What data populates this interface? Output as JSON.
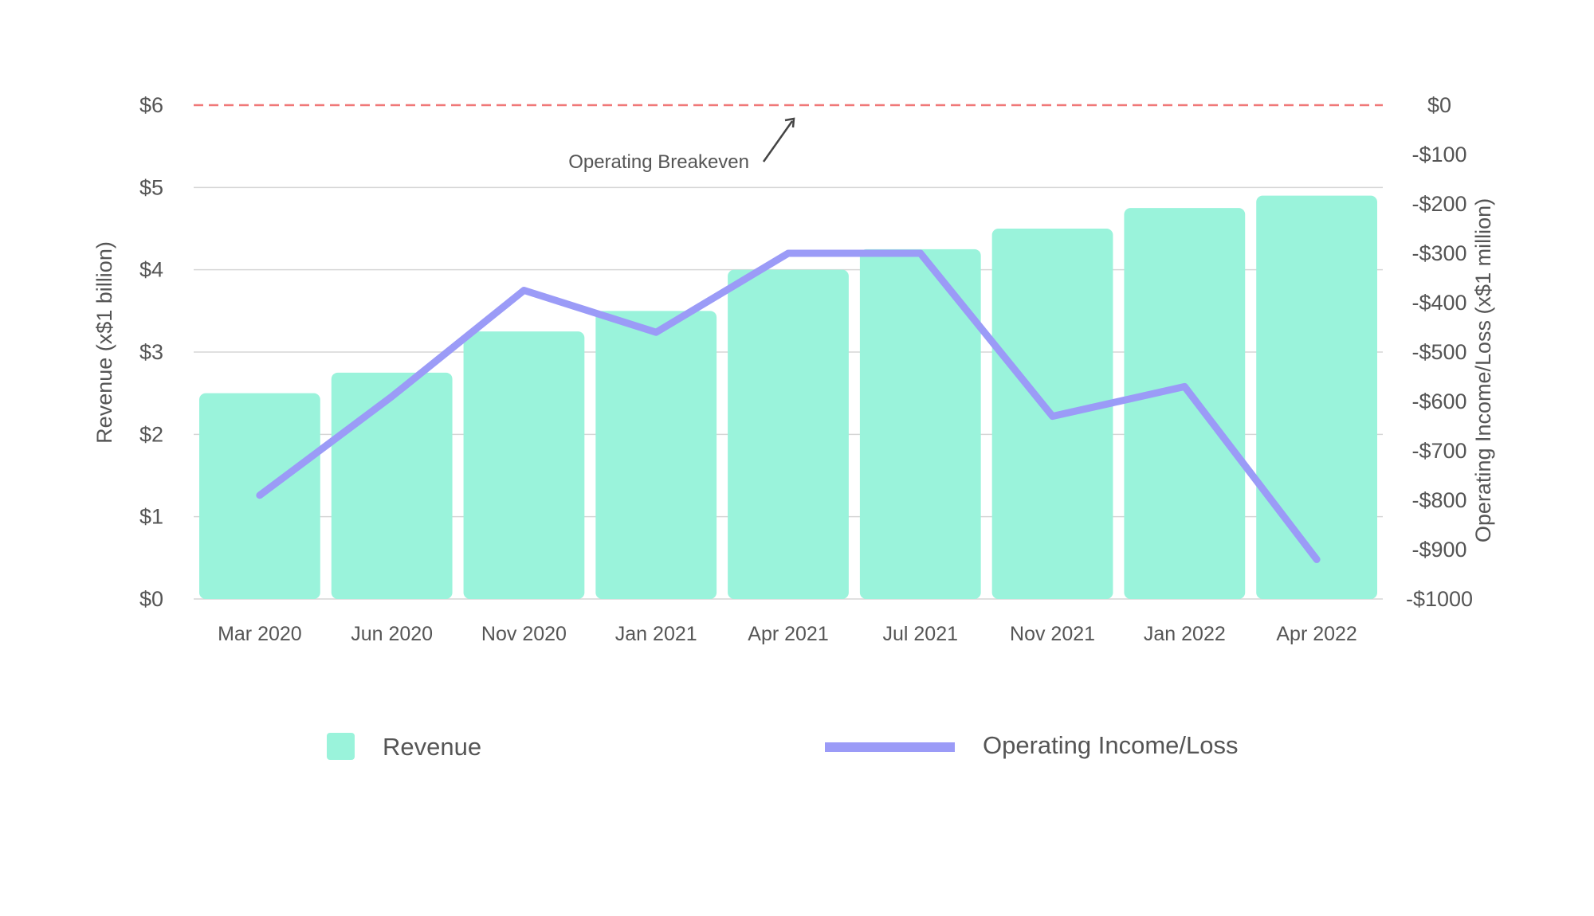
{
  "chart_data": {
    "type": "bar",
    "categories": [
      "Mar 2020",
      "Jun 2020",
      "Nov 2020",
      "Jan 2021",
      "Apr 2021",
      "Jul 2021",
      "Nov 2021",
      "Jan 2022",
      "Apr 2022"
    ],
    "series": [
      {
        "name": "Revenue",
        "type": "bar",
        "axis": "left",
        "color": "#9af3db",
        "values": [
          2.5,
          2.75,
          3.25,
          3.5,
          4.0,
          4.25,
          4.5,
          4.75,
          4.9
        ]
      },
      {
        "name": "Operating Income/Loss",
        "type": "line",
        "axis": "right",
        "color": "#9b9bf7",
        "values": [
          -790,
          -590,
          -375,
          -460,
          -300,
          -300,
          -630,
          -570,
          -920
        ]
      }
    ],
    "left_axis": {
      "label": "Revenue (x$1 billion)",
      "ylim": [
        0,
        6
      ],
      "ticks": [
        0,
        1,
        2,
        3,
        4,
        5,
        6
      ],
      "tick_labels": [
        "$0",
        "$1",
        "$2",
        "$3",
        "$4",
        "$5",
        "$6"
      ]
    },
    "right_axis": {
      "label": "Operating Income/Loss (x$1 million)",
      "ylim": [
        -1000,
        0
      ],
      "ticks": [
        0,
        -100,
        -200,
        -300,
        -400,
        -500,
        -600,
        -700,
        -800,
        -900,
        -1000
      ],
      "tick_labels": [
        "$0",
        "-$100",
        "-$200",
        "-$300",
        "-$400",
        "-$500",
        "-$600",
        "-$700",
        "-$800",
        "-$900",
        "-$1000"
      ]
    },
    "reference_line": {
      "axis": "right",
      "value": 0,
      "label": "Operating Breakeven",
      "color": "#f07878",
      "style": "dashed"
    },
    "grid": true,
    "legend_position": "bottom",
    "legend": [
      {
        "label": "Revenue",
        "marker": "square",
        "color": "#9af3db"
      },
      {
        "label": "Operating Income/Loss",
        "marker": "line",
        "color": "#9b9bf7"
      }
    ]
  }
}
